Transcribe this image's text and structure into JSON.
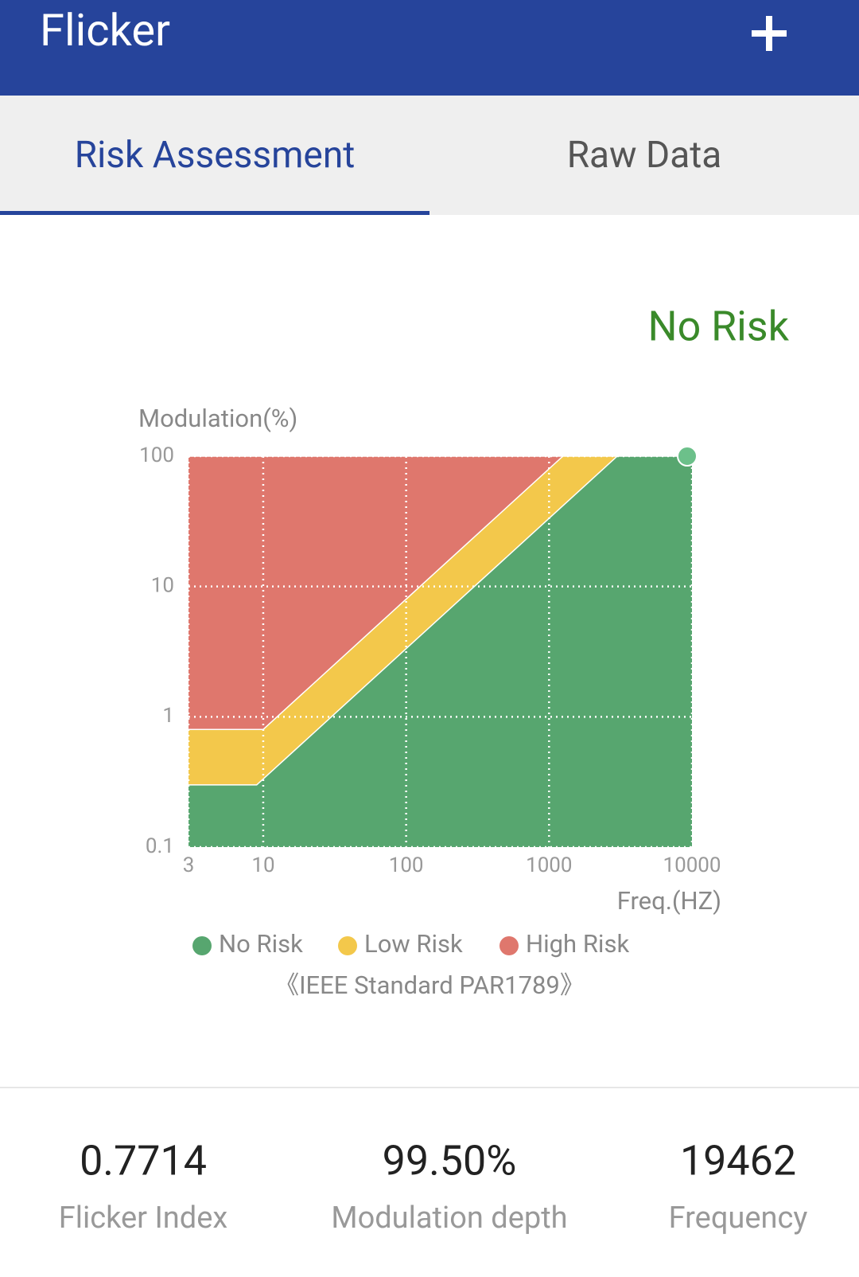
{
  "app_bar": {
    "title": "Flicker"
  },
  "tabs": [
    "Risk Assessment",
    "Raw Data"
  ],
  "status": "No Risk",
  "chart_data": {
    "type": "area",
    "y_label": "Modulation(%)",
    "x_label": "Freq.(HZ)",
    "xscale": "log",
    "yscale": "log",
    "grid": true,
    "xlim": [
      3,
      10000
    ],
    "xticks": [
      3,
      10,
      100,
      1000,
      10000
    ],
    "ylim": [
      0.1,
      100
    ],
    "yticks": [
      0.1,
      1,
      10,
      100
    ],
    "series": [
      {
        "name": "No Risk",
        "color": "#57a66f",
        "x": [
          3,
          9,
          3000,
          10000
        ],
        "values": [
          0.3,
          0.3,
          100,
          100
        ]
      },
      {
        "name": "Low Risk",
        "color": "#f3c84b",
        "x": [
          3,
          10,
          1250,
          10000
        ],
        "values": [
          0.8,
          0.8,
          100,
          100
        ]
      },
      {
        "name": "High Risk",
        "color": "#df776d",
        "x": [
          3,
          10000
        ],
        "values": [
          100,
          100
        ]
      }
    ],
    "caption": "《IEEE Standard PAR1789》"
  },
  "stats": [
    {
      "value": "0.7714",
      "label": "Flicker Index"
    },
    {
      "value": "99.50%",
      "label": "Modulation depth"
    },
    {
      "value": "19462",
      "label": "Frequency"
    }
  ]
}
